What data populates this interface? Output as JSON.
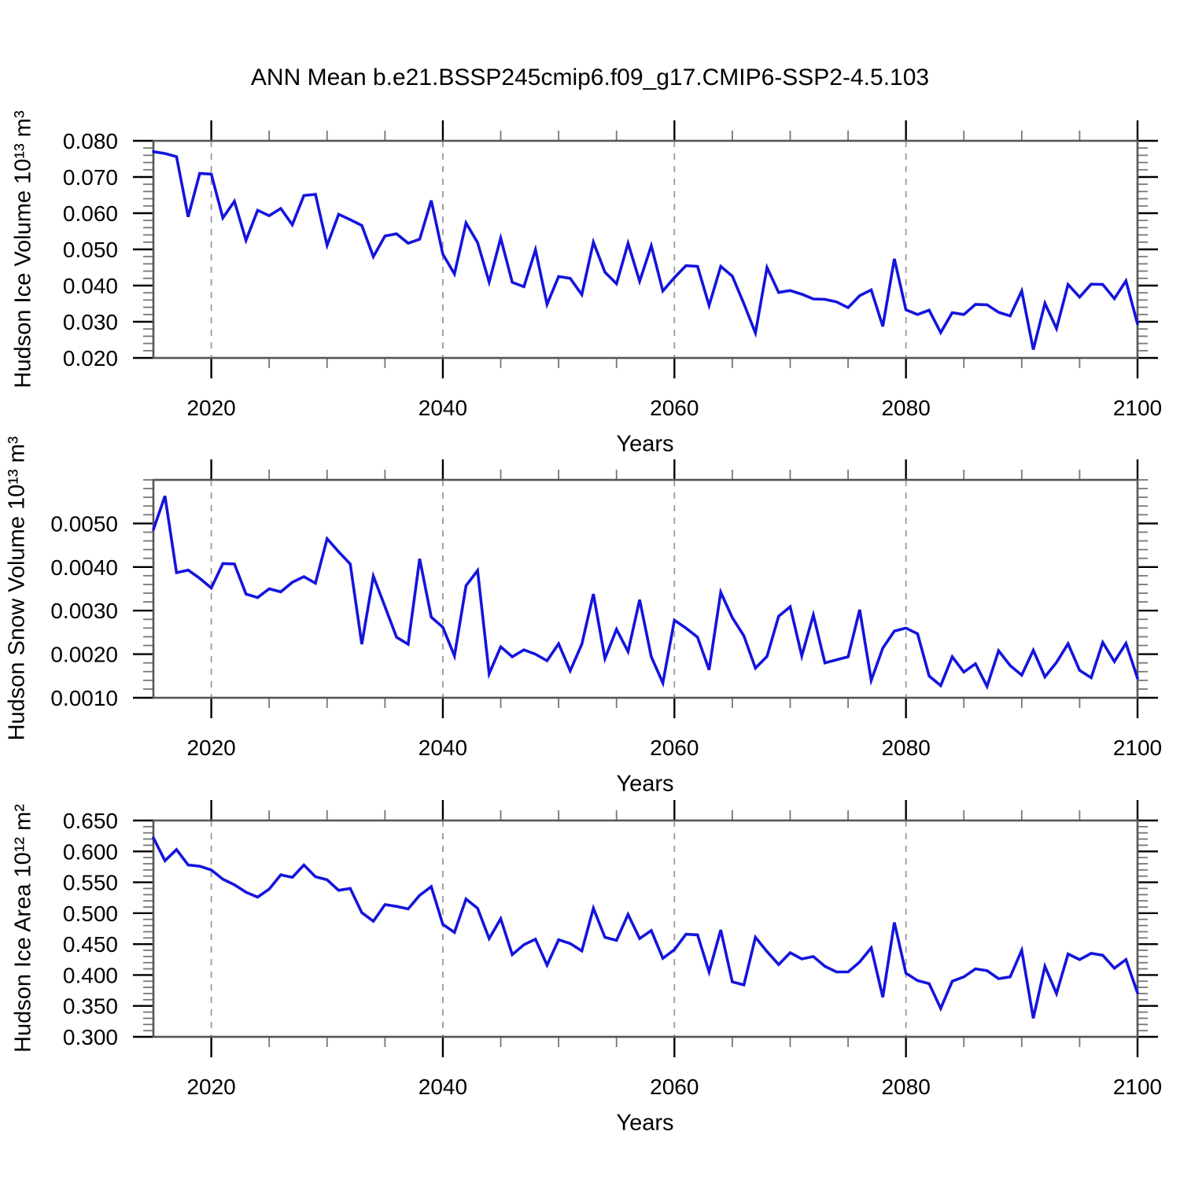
{
  "title": "ANN Mean b.e21.BSSP245cmip6.f09_g17.CMIP6-SSP2-4.5.103",
  "line_color": "#1414dd",
  "chart_data": [
    {
      "type": "line",
      "title": "Hudson Ice Volume",
      "ylabel": "Hudson Ice Volume 10¹³ m³",
      "xlabel": "Years",
      "x_range": [
        2015,
        2100
      ],
      "x_step": 1,
      "ylim": [
        0.02,
        0.08
      ],
      "ytick_values": [
        0.08,
        0.07,
        0.06,
        0.05,
        0.04,
        0.03,
        0.02
      ],
      "ytick_labels": [
        "0.080",
        "0.070",
        "0.060",
        "0.050",
        "0.040",
        "0.030",
        "0.020"
      ],
      "ytick_minor_step": 0.002,
      "xtick_values": [
        2020,
        2040,
        2060,
        2080,
        2100
      ],
      "xtick_labels": [
        "2020",
        "2040",
        "2060",
        "2080",
        "2100"
      ],
      "xtick_minor_step": 5,
      "x_gridlines": [
        2020,
        2040,
        2060,
        2080
      ],
      "grid": "vertical-dashed",
      "values": [
        0.077,
        0.0765,
        0.0756,
        0.059,
        0.071,
        0.0708,
        0.0587,
        0.0633,
        0.0525,
        0.0608,
        0.0593,
        0.0613,
        0.0568,
        0.0649,
        0.0652,
        0.0511,
        0.0597,
        0.0582,
        0.0566,
        0.048,
        0.0537,
        0.0543,
        0.0517,
        0.0528,
        0.0635,
        0.0487,
        0.0432,
        0.0573,
        0.0519,
        0.041,
        0.0531,
        0.0409,
        0.0397,
        0.0499,
        0.0348,
        0.0425,
        0.042,
        0.0375,
        0.052,
        0.0437,
        0.0405,
        0.0517,
        0.0412,
        0.051,
        0.0385,
        0.0422,
        0.0455,
        0.0453,
        0.0345,
        0.0453,
        0.0426,
        0.035,
        0.0269,
        0.045,
        0.0381,
        0.0386,
        0.0376,
        0.0363,
        0.0362,
        0.0355,
        0.0339,
        0.0372,
        0.0388,
        0.0287,
        0.0474,
        0.0333,
        0.032,
        0.0332,
        0.027,
        0.0325,
        0.032,
        0.0348,
        0.0347,
        0.0326,
        0.0316,
        0.0385,
        0.0223,
        0.0351,
        0.0281,
        0.0403,
        0.0368,
        0.0404,
        0.0403,
        0.0364,
        0.0413,
        0.0294
      ]
    },
    {
      "type": "line",
      "title": "Hudson Snow Volume",
      "ylabel": "Hudson Snow Volume 10¹³ m³",
      "xlabel": "Years",
      "x_range": [
        2015,
        2100
      ],
      "x_step": 1,
      "ylim": [
        0.001,
        0.006
      ],
      "ytick_values": [
        0.005,
        0.004,
        0.003,
        0.002,
        0.001
      ],
      "ytick_labels": [
        "0.0050",
        "0.0040",
        "0.0030",
        "0.0020",
        "0.0010"
      ],
      "ytick_minor_step": 0.0002,
      "xtick_values": [
        2020,
        2040,
        2060,
        2080,
        2100
      ],
      "xtick_labels": [
        "2020",
        "2040",
        "2060",
        "2080",
        "2100"
      ],
      "xtick_minor_step": 5,
      "x_gridlines": [
        2020,
        2040,
        2060,
        2080
      ],
      "grid": "vertical-dashed",
      "values": [
        0.00486,
        0.00563,
        0.00387,
        0.00393,
        0.00374,
        0.00352,
        0.00408,
        0.00407,
        0.00338,
        0.0033,
        0.0035,
        0.00343,
        0.00365,
        0.00378,
        0.00363,
        0.00465,
        0.00435,
        0.00407,
        0.00223,
        0.00379,
        0.00309,
        0.00239,
        0.00223,
        0.00419,
        0.00285,
        0.00262,
        0.00196,
        0.00357,
        0.00392,
        0.00155,
        0.00217,
        0.00194,
        0.0021,
        0.002,
        0.00185,
        0.00224,
        0.00162,
        0.00223,
        0.00338,
        0.0019,
        0.00257,
        0.00206,
        0.00325,
        0.00194,
        0.00134,
        0.00278,
        0.0026,
        0.00239,
        0.00164,
        0.00342,
        0.00284,
        0.00242,
        0.00168,
        0.00195,
        0.00287,
        0.00309,
        0.00196,
        0.0029,
        0.0018,
        0.00187,
        0.00194,
        0.00302,
        0.0014,
        0.00214,
        0.00253,
        0.0026,
        0.00247,
        0.0015,
        0.00128,
        0.00194,
        0.00159,
        0.00178,
        0.00126,
        0.00208,
        0.00174,
        0.00152,
        0.00209,
        0.00148,
        0.00181,
        0.00224,
        0.00163,
        0.00146,
        0.00227,
        0.00183,
        0.00225,
        0.00145
      ]
    },
    {
      "type": "line",
      "title": "Hudson Ice Area",
      "ylabel": "Hudson Ice Area 10¹² m²",
      "xlabel": "Years",
      "x_range": [
        2015,
        2100
      ],
      "x_step": 1,
      "ylim": [
        0.3,
        0.65
      ],
      "ytick_values": [
        0.65,
        0.6,
        0.55,
        0.5,
        0.45,
        0.4,
        0.35,
        0.3
      ],
      "ytick_labels": [
        "0.650",
        "0.600",
        "0.550",
        "0.500",
        "0.450",
        "0.400",
        "0.350",
        "0.300"
      ],
      "ytick_minor_step": 0.01,
      "xtick_values": [
        2020,
        2040,
        2060,
        2080,
        2100
      ],
      "xtick_labels": [
        "2020",
        "2040",
        "2060",
        "2080",
        "2100"
      ],
      "xtick_minor_step": 5,
      "x_gridlines": [
        2020,
        2040,
        2060,
        2080
      ],
      "grid": "vertical-dashed",
      "values": [
        0.622,
        0.585,
        0.603,
        0.578,
        0.576,
        0.57,
        0.555,
        0.546,
        0.534,
        0.526,
        0.539,
        0.562,
        0.558,
        0.578,
        0.559,
        0.554,
        0.537,
        0.54,
        0.501,
        0.487,
        0.514,
        0.511,
        0.507,
        0.529,
        0.543,
        0.482,
        0.469,
        0.523,
        0.508,
        0.459,
        0.491,
        0.433,
        0.449,
        0.458,
        0.416,
        0.457,
        0.451,
        0.439,
        0.508,
        0.461,
        0.456,
        0.498,
        0.459,
        0.472,
        0.427,
        0.441,
        0.466,
        0.465,
        0.405,
        0.473,
        0.389,
        0.384,
        0.461,
        0.438,
        0.417,
        0.436,
        0.426,
        0.43,
        0.414,
        0.405,
        0.405,
        0.421,
        0.444,
        0.364,
        0.485,
        0.403,
        0.391,
        0.386,
        0.346,
        0.39,
        0.397,
        0.41,
        0.407,
        0.394,
        0.397,
        0.44,
        0.33,
        0.414,
        0.37,
        0.434,
        0.425,
        0.435,
        0.432,
        0.411,
        0.425,
        0.371
      ]
    }
  ]
}
